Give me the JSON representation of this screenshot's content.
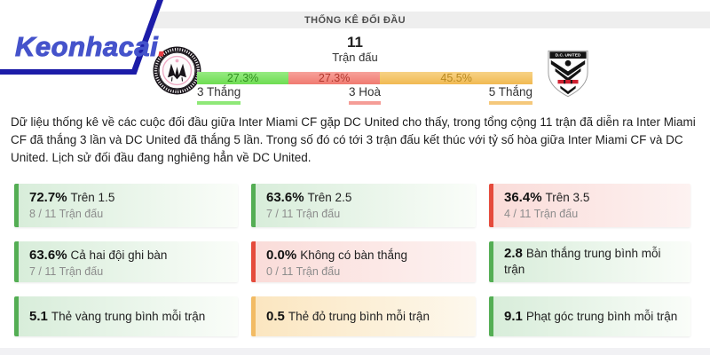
{
  "brand": {
    "logo_text": "Keonhacai",
    "logo_dot": "."
  },
  "header": {
    "title": "THỐNG KÊ ĐỐI ĐẦU"
  },
  "h2h": {
    "matches_count": "11",
    "matches_label": "Trận đấu",
    "teams": [
      {
        "name": "Inter Miami CF",
        "icon": "inter-miami-logo"
      },
      {
        "name": "DC United",
        "icon": "dc-united-logo",
        "shield_text": "D.C. UNITED"
      }
    ],
    "bar": {
      "segments": [
        {
          "pct": "27.3%",
          "value": 27.3,
          "type": "green"
        },
        {
          "pct": "27.3%",
          "value": 27.3,
          "type": "red"
        },
        {
          "pct": "45.5%",
          "value": 45.5,
          "type": "orange"
        }
      ]
    },
    "legend": [
      {
        "label": "3 Thắng",
        "type": "green"
      },
      {
        "label": "3 Hoà",
        "type": "red"
      },
      {
        "label": "5 Thắng",
        "type": "orange"
      }
    ]
  },
  "summary": "Dữ liệu thống kê về các cuộc đối đầu giữa Inter Miami CF gặp DC United cho thấy, trong tổng cộng 11 trận đã diễn ra Inter Miami CF đã thắng 3 lần và DC United đã thắng 5 lần. Trong số đó có tới 3 trận đấu kết thúc với tỷ số hòa giữa Inter Miami CF và DC United. Lịch sử đối đầu đang nghiêng hẳn về DC United.",
  "stats_cards": [
    {
      "value": "72.7%",
      "label": "Trên 1.5",
      "sub": "8 / 11 Trận đấu",
      "type": "green"
    },
    {
      "value": "63.6%",
      "label": "Trên 2.5",
      "sub": "7 / 11 Trận đấu",
      "type": "green"
    },
    {
      "value": "36.4%",
      "label": "Trên 3.5",
      "sub": "4 / 11 Trận đấu",
      "type": "red"
    },
    {
      "value": "63.6%",
      "label": "Cả hai đội ghi bàn",
      "sub": "7 / 11 Trận đấu",
      "type": "green"
    },
    {
      "value": "0.0%",
      "label": "Không có bàn thắng",
      "sub": "0 / 11 Trận đấu",
      "type": "red"
    },
    {
      "value": "2.8",
      "label": "Bàn thắng trung bình mỗi trận",
      "type": "green"
    },
    {
      "value": "5.1",
      "label": "Thẻ vàng trung bình mỗi trận",
      "type": "green"
    },
    {
      "value": "0.5",
      "label": "Thẻ đỏ trung bình mỗi trận",
      "type": "orange"
    },
    {
      "value": "9.1",
      "label": "Phạt góc trung bình mỗi trận",
      "type": "green"
    }
  ],
  "colors": {
    "brand_blue": "#4553cb",
    "brand_red_dot": "#e83d44",
    "plaque_navy": "#1c1ca8",
    "win_green": "#6edd52",
    "draw_red": "#f07a70",
    "loss_orange": "#f1ba52",
    "card_green_border": "#54ae54",
    "card_red_border": "#e54b3c",
    "card_orange_border": "#f2bb64"
  },
  "chart_data": {
    "type": "bar",
    "subtype": "horizontal-stacked",
    "title": "THỐNG KÊ ĐỐI ĐẦU",
    "total_matches": 11,
    "categories": [
      "Inter Miami CF thắng",
      "Hoà",
      "DC United thắng"
    ],
    "values": [
      27.3,
      27.3,
      45.5
    ],
    "counts": [
      3,
      3,
      5
    ],
    "labels": [
      "3 Thắng",
      "3 Hoà",
      "5 Thắng"
    ],
    "colors": [
      "#6edd52",
      "#f07a70",
      "#f1ba52"
    ]
  }
}
